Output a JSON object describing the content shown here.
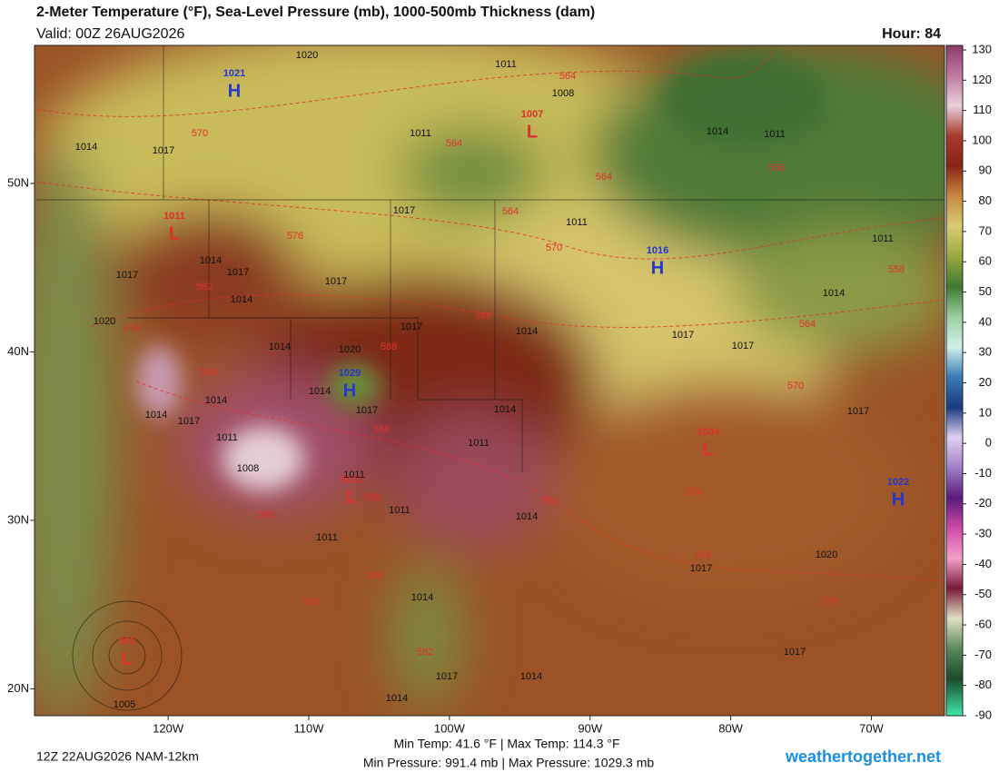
{
  "header": {
    "title": "2-Meter Temperature (°F), Sea-Level Pressure (mb), 1000-500mb Thickness (dam)",
    "valid": "Valid: 00Z 26AUG2026",
    "hour": "Hour: 84"
  },
  "map": {
    "lonlim": [
      -129.5,
      -64.8
    ],
    "latlim": [
      18.4,
      58.2
    ],
    "lonticks": [
      {
        "value": -120,
        "label": "120W"
      },
      {
        "value": -110,
        "label": "110W"
      },
      {
        "value": -100,
        "label": "100W"
      },
      {
        "value": -90,
        "label": "90W"
      },
      {
        "value": -80,
        "label": "80W"
      },
      {
        "value": -70,
        "label": "70W"
      }
    ],
    "latticks": [
      {
        "value": 20,
        "label": "20N"
      },
      {
        "value": 30,
        "label": "30N"
      },
      {
        "value": 40,
        "label": "40N"
      },
      {
        "value": 50,
        "label": "50N"
      }
    ],
    "centers": [
      {
        "letter": "H",
        "value": 1021,
        "color": "#2238d0"
      },
      {
        "letter": "L",
        "value": 1007,
        "color": "#e0302a"
      },
      {
        "letter": "L",
        "value": 1011,
        "color": "#e0302a"
      },
      {
        "letter": "H",
        "value": 1016,
        "color": "#2238d0"
      },
      {
        "letter": "H",
        "value": 1029,
        "color": "#2238d0"
      },
      {
        "letter": "L",
        "value": 1004,
        "color": "#e0302a"
      },
      {
        "letter": "L",
        "value": 1011,
        "color": "#e0302a"
      },
      {
        "letter": "H",
        "value": 1022,
        "color": "#2238d0"
      },
      {
        "letter": "L",
        "value": 991,
        "color": "#e0302a"
      }
    ],
    "isobar_labels": [
      1020,
      1011,
      1008,
      1014,
      1017,
      1011,
      1014,
      1011,
      1017,
      1011,
      1014,
      1017,
      1017,
      1014,
      1017,
      1011,
      1014,
      1020,
      1017,
      1014,
      1017,
      1017,
      1014,
      1020,
      1014,
      1014,
      1017,
      1014,
      1017,
      1014,
      1011,
      1011,
      1008,
      1011,
      1011,
      1014,
      1011,
      1017,
      1020,
      1017,
      1014,
      1017,
      1017,
      1014,
      1014,
      1005
    ],
    "thickness_labels": [
      564,
      570,
      564,
      564,
      558,
      564,
      570,
      576,
      582,
      576,
      588,
      588,
      564,
      558,
      588,
      570,
      588,
      588,
      582,
      576,
      588,
      576,
      576,
      588,
      582,
      582
    ]
  },
  "colorbar": {
    "lim": [
      -90,
      131.5
    ],
    "ticks": [
      130,
      120,
      110,
      100,
      90,
      80,
      70,
      60,
      50,
      40,
      30,
      20,
      10,
      0,
      -10,
      -20,
      -30,
      -40,
      -50,
      -60,
      -70,
      -80,
      -90
    ]
  },
  "footer": {
    "run": "12Z 22AUG2026 NAM-12km",
    "temp_range": "Min Temp: 41.6 °F | Max Temp: 114.3 °F",
    "pressure_range": "Min Pressure: 991.4 mb | Max Pressure: 1029.3 mb",
    "site": "weathertogether.net"
  }
}
